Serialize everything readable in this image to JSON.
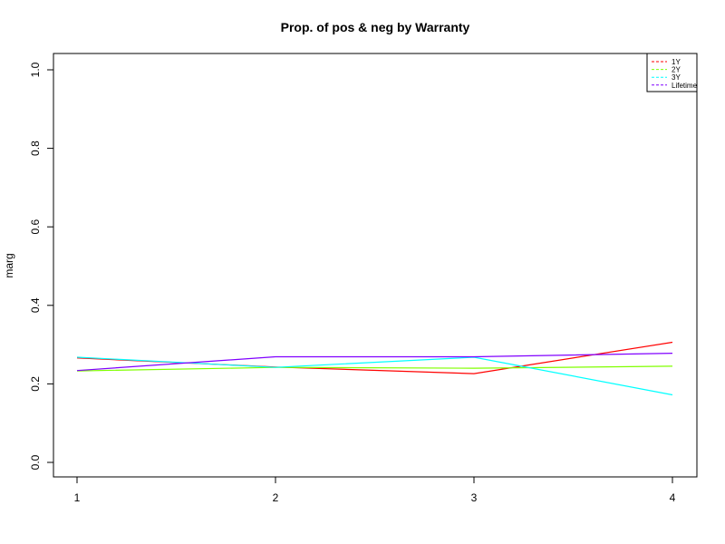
{
  "chart_data": {
    "type": "line",
    "title": "Prop. of pos & neg by Warranty",
    "xlabel": "",
    "ylabel": "marg",
    "x": [
      1,
      2,
      3,
      4
    ],
    "xlim": [
      1,
      4
    ],
    "ylim": [
      0,
      1
    ],
    "x_ticks": [
      "1",
      "2",
      "3",
      "4"
    ],
    "y_ticks": [
      "0.0",
      "0.2",
      "0.4",
      "0.6",
      "0.8",
      "1.0"
    ],
    "grid": false,
    "legend_position": "top-right",
    "series": [
      {
        "name": "1Y",
        "color": "#FF0000",
        "values": [
          0.266,
          0.243,
          0.226,
          0.306
        ]
      },
      {
        "name": "2Y",
        "color": "#80FF00",
        "values": [
          0.233,
          0.242,
          0.24,
          0.245
        ]
      },
      {
        "name": "3Y",
        "color": "#00FFFF",
        "values": [
          0.268,
          0.242,
          0.268,
          0.172
        ]
      },
      {
        "name": "Lifetime",
        "color": "#8000FF",
        "values": [
          0.234,
          0.269,
          0.269,
          0.278
        ]
      }
    ]
  }
}
